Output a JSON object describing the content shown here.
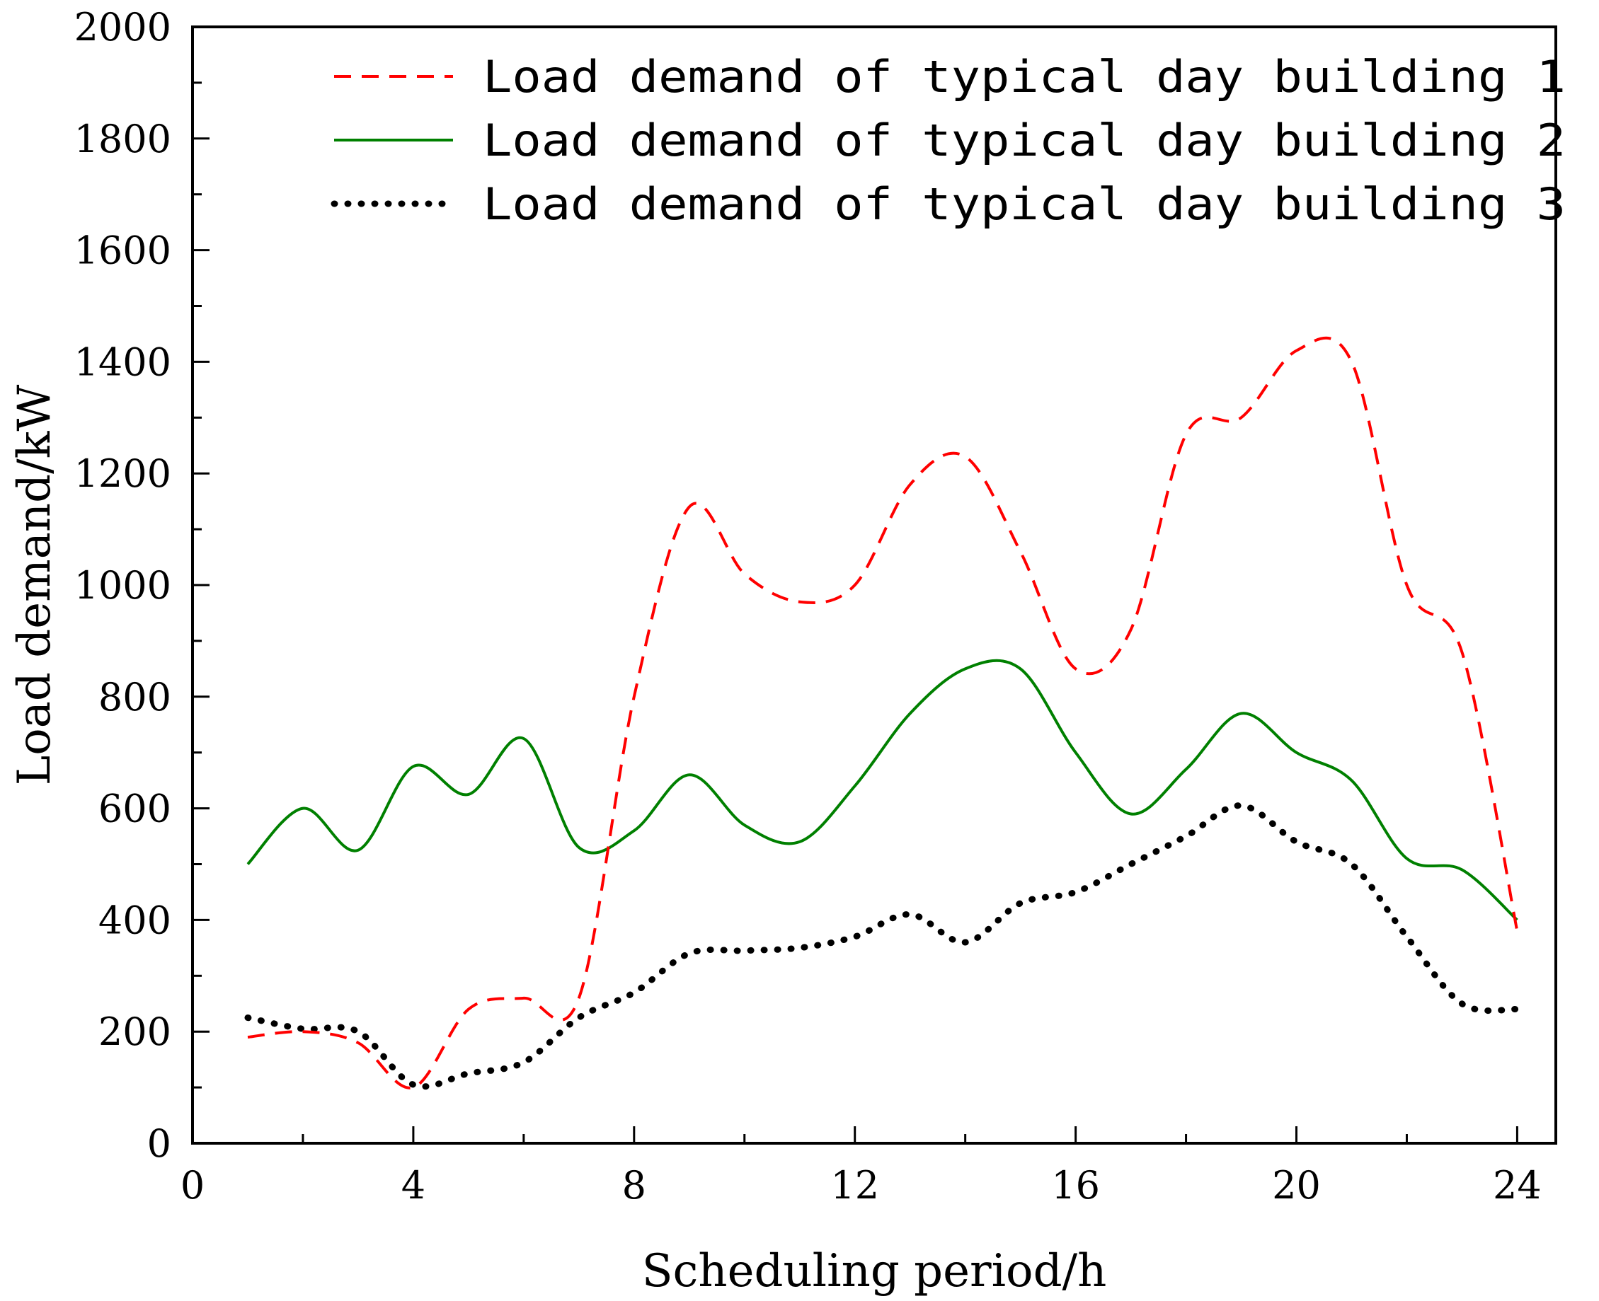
{
  "chart_data": {
    "type": "line",
    "title": "",
    "xlabel": "Scheduling period/h",
    "ylabel": "Load demand/kW",
    "xlim": [
      0,
      24.7
    ],
    "ylim": [
      0,
      2000
    ],
    "xticks": [
      0,
      4,
      8,
      12,
      16,
      20,
      24
    ],
    "yticks": [
      0,
      200,
      400,
      600,
      800,
      1000,
      1200,
      1400,
      1600,
      1800,
      2000
    ],
    "x": [
      1,
      2,
      3,
      4,
      5,
      6,
      7,
      8,
      9,
      10,
      11,
      12,
      13,
      14,
      15,
      16,
      17,
      18,
      19,
      20,
      21,
      22,
      23,
      24
    ],
    "grid": false,
    "legend_position": "top-right",
    "series": [
      {
        "name": "Load demand of typical day building 1",
        "color": "#ff0000",
        "style": "dashed",
        "values": [
          190,
          200,
          180,
          100,
          240,
          260,
          260,
          800,
          1140,
          1020,
          970,
          1000,
          1180,
          1230,
          1060,
          850,
          920,
          1270,
          1300,
          1420,
          1400,
          1000,
          880,
          380
        ]
      },
      {
        "name": "Load demand of typical day building 2",
        "color": "#008000",
        "style": "solid",
        "values": [
          500,
          600,
          525,
          675,
          625,
          725,
          530,
          560,
          660,
          570,
          540,
          640,
          770,
          850,
          850,
          700,
          590,
          670,
          770,
          700,
          650,
          510,
          490,
          400
        ]
      },
      {
        "name": "Load demand of typical day building 3",
        "color": "#000000",
        "style": "dotted",
        "values": [
          225,
          205,
          200,
          105,
          125,
          145,
          225,
          270,
          340,
          345,
          350,
          370,
          410,
          360,
          430,
          450,
          500,
          550,
          605,
          540,
          500,
          370,
          250,
          240
        ]
      }
    ]
  }
}
